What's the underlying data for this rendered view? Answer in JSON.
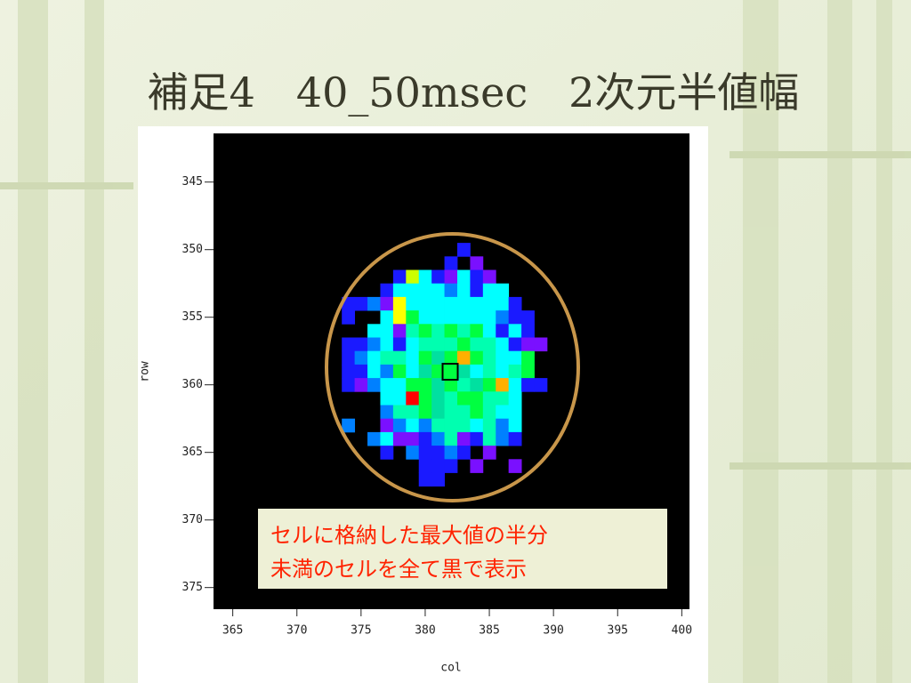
{
  "chart_data": {
    "type": "heatmap",
    "title": "補足4　40_50msec　2次元半値幅",
    "x_label": "col",
    "y_label": "row",
    "xlim": [
      363.5,
      400.6
    ],
    "ylim": [
      341.4,
      376.6
    ],
    "y_reversed": true,
    "xticks": [
      365,
      370,
      375,
      380,
      385,
      390,
      395,
      400
    ],
    "yticks": [
      345,
      350,
      355,
      360,
      365,
      370,
      375
    ],
    "background": "#000000",
    "annotation": [
      "セルに格納した最大値の半分",
      "未満のセルを全て黒で表示"
    ],
    "cells": [
      {
        "row": 350,
        "cols": [
          383
        ],
        "colors": [
          "#1a1aff"
        ]
      },
      {
        "row": 351,
        "cols": [
          382,
          384
        ],
        "colors": [
          "#1a1aff",
          "#7a10ff"
        ]
      },
      {
        "row": 352,
        "cols": [
          378,
          379,
          380,
          381,
          382,
          383,
          384,
          385
        ],
        "colors": [
          "#1a1aff",
          "#ccff00",
          "#00ffff",
          "#1a1aff",
          "#7a10ff",
          "#00ffff",
          "#1a1aff",
          "#7a10ff"
        ]
      },
      {
        "row": 353,
        "cols": [
          377,
          378,
          379,
          380,
          381,
          382,
          383,
          384,
          385,
          386
        ],
        "colors": [
          "#1a1aff",
          "#00ffff",
          "#00ffff",
          "#00ffff",
          "#00ffff",
          "#0080ff",
          "#00ffff",
          "#1a1aff",
          "#00ffff",
          "#00ffff"
        ]
      },
      {
        "row": 354,
        "cols": [
          374,
          375,
          376,
          377,
          378,
          379,
          380,
          381,
          382,
          383,
          384,
          385,
          386,
          387
        ],
        "colors": [
          "#1a1aff",
          "#1a1aff",
          "#0080ff",
          "#7a10ff",
          "#ffff00",
          "#00ffff",
          "#00ffff",
          "#00ffff",
          "#00ffff",
          "#00ffff",
          "#00ffff",
          "#00ffff",
          "#00ffff",
          "#1a1aff"
        ]
      },
      {
        "row": 355,
        "cols": [
          374,
          377,
          378,
          379,
          380,
          381,
          382,
          383,
          384,
          385,
          386,
          387,
          388
        ],
        "colors": [
          "#1a1aff",
          "#00ffff",
          "#ffff00",
          "#00ff40",
          "#00ffff",
          "#00ffff",
          "#00ffff",
          "#00ffff",
          "#00ffff",
          "#00ffff",
          "#0080ff",
          "#1a1aff",
          "#1a1aff"
        ]
      },
      {
        "row": 356,
        "cols": [
          376,
          377,
          378,
          379,
          380,
          381,
          382,
          383,
          384,
          385,
          386,
          387,
          388
        ],
        "colors": [
          "#00ffff",
          "#00ffff",
          "#7a10ff",
          "#00ffb0",
          "#00ff40",
          "#00ffb0",
          "#00ff40",
          "#00ffb0",
          "#00ff40",
          "#00ffff",
          "#1a1aff",
          "#00ffff",
          "#1a1aff"
        ]
      },
      {
        "row": 357,
        "cols": [
          374,
          375,
          376,
          377,
          378,
          379,
          380,
          381,
          382,
          383,
          384,
          385,
          386,
          387,
          388,
          389
        ],
        "colors": [
          "#1a1aff",
          "#1a1aff",
          "#0080ff",
          "#00ffff",
          "#1a1aff",
          "#00ffff",
          "#00ffb0",
          "#00ffb0",
          "#00ffb0",
          "#00ff40",
          "#00ffb0",
          "#00ffb0",
          "#00ffff",
          "#1a1aff",
          "#7a10ff",
          "#7a10ff"
        ]
      },
      {
        "row": 358,
        "cols": [
          374,
          375,
          376,
          377,
          378,
          379,
          380,
          381,
          382,
          383,
          384,
          385,
          386,
          387,
          388
        ],
        "colors": [
          "#1a1aff",
          "#0080ff",
          "#00ffff",
          "#00ffb0",
          "#00ffb0",
          "#00ffff",
          "#00ff40",
          "#00e0a0",
          "#00ff40",
          "#ffb000",
          "#00ff40",
          "#00ffb0",
          "#00ffff",
          "#00ffff",
          "#00ff40"
        ]
      },
      {
        "row": 359,
        "cols": [
          374,
          375,
          376,
          377,
          378,
          379,
          380,
          381,
          382,
          383,
          384,
          385,
          386,
          387,
          388
        ],
        "colors": [
          "#1a1aff",
          "#1a1aff",
          "#00ffff",
          "#0080ff",
          "#00ff40",
          "#00ffff",
          "#00e0a0",
          "#00ff40",
          "#00ff40",
          "#00e0a0",
          "#00ffff",
          "#00ffb0",
          "#00ffff",
          "#00ffb0",
          "#00ff40"
        ]
      },
      {
        "row": 360,
        "cols": [
          374,
          375,
          376,
          377,
          378,
          379,
          380,
          381,
          382,
          383,
          384,
          385,
          386,
          387,
          388,
          389
        ],
        "colors": [
          "#1a1aff",
          "#7a10ff",
          "#0080ff",
          "#00ffff",
          "#00ffff",
          "#00ff40",
          "#00ff40",
          "#00e0a0",
          "#00ff40",
          "#00ffb0",
          "#00e0a0",
          "#00ff40",
          "#ffb000",
          "#00ffff",
          "#1a1aff",
          "#1a1aff"
        ]
      },
      {
        "row": 361,
        "cols": [
          377,
          378,
          379,
          380,
          381,
          382,
          383,
          384,
          385,
          386,
          387
        ],
        "colors": [
          "#00ffff",
          "#00ffff",
          "#ff0000",
          "#00ff40",
          "#00e0a0",
          "#00ffb0",
          "#00ff40",
          "#00ff40",
          "#00ffb0",
          "#00ffb0",
          "#00ffff"
        ]
      },
      {
        "row": 362,
        "cols": [
          377,
          378,
          379,
          380,
          381,
          382,
          383,
          384,
          385,
          386,
          387
        ],
        "colors": [
          "#0080ff",
          "#00ffb0",
          "#00ffb0",
          "#00ff40",
          "#00e0a0",
          "#00ffb0",
          "#00ffb0",
          "#00ff40",
          "#00ffb0",
          "#00ffff",
          "#00ffff"
        ]
      },
      {
        "row": 363,
        "cols": [
          374,
          377,
          378,
          379,
          380,
          381,
          382,
          383,
          384,
          385,
          386,
          387
        ],
        "colors": [
          "#0080ff",
          "#7a10ff",
          "#0080ff",
          "#00ffff",
          "#0080ff",
          "#00ffb0",
          "#00ffb0",
          "#00ffb0",
          "#00ffff",
          "#00ffb0",
          "#0080ff",
          "#00ffff"
        ]
      },
      {
        "row": 364,
        "cols": [
          376,
          377,
          378,
          379,
          380,
          381,
          382,
          383,
          384,
          385,
          386,
          387
        ],
        "colors": [
          "#0080ff",
          "#00ffff",
          "#7a10ff",
          "#7a10ff",
          "#1a1aff",
          "#0080ff",
          "#00ffb0",
          "#7a10ff",
          "#1a1aff",
          "#00ffb0",
          "#0080ff",
          "#1a1aff"
        ]
      },
      {
        "row": 365,
        "cols": [
          377,
          379,
          380,
          381,
          382,
          383,
          385
        ],
        "colors": [
          "#1a1aff",
          "#0080ff",
          "#1a1aff",
          "#1a1aff",
          "#0080ff",
          "#1a1aff",
          "#7a10ff"
        ]
      },
      {
        "row": 366,
        "cols": [
          380,
          381,
          382,
          384,
          387
        ],
        "colors": [
          "#1a1aff",
          "#1a1aff",
          "#1a1aff",
          "#7a10ff",
          "#7a10ff"
        ]
      },
      {
        "row": 367,
        "cols": [
          380,
          381
        ],
        "colors": [
          "#1a1aff",
          "#1a1aff"
        ]
      }
    ]
  }
}
